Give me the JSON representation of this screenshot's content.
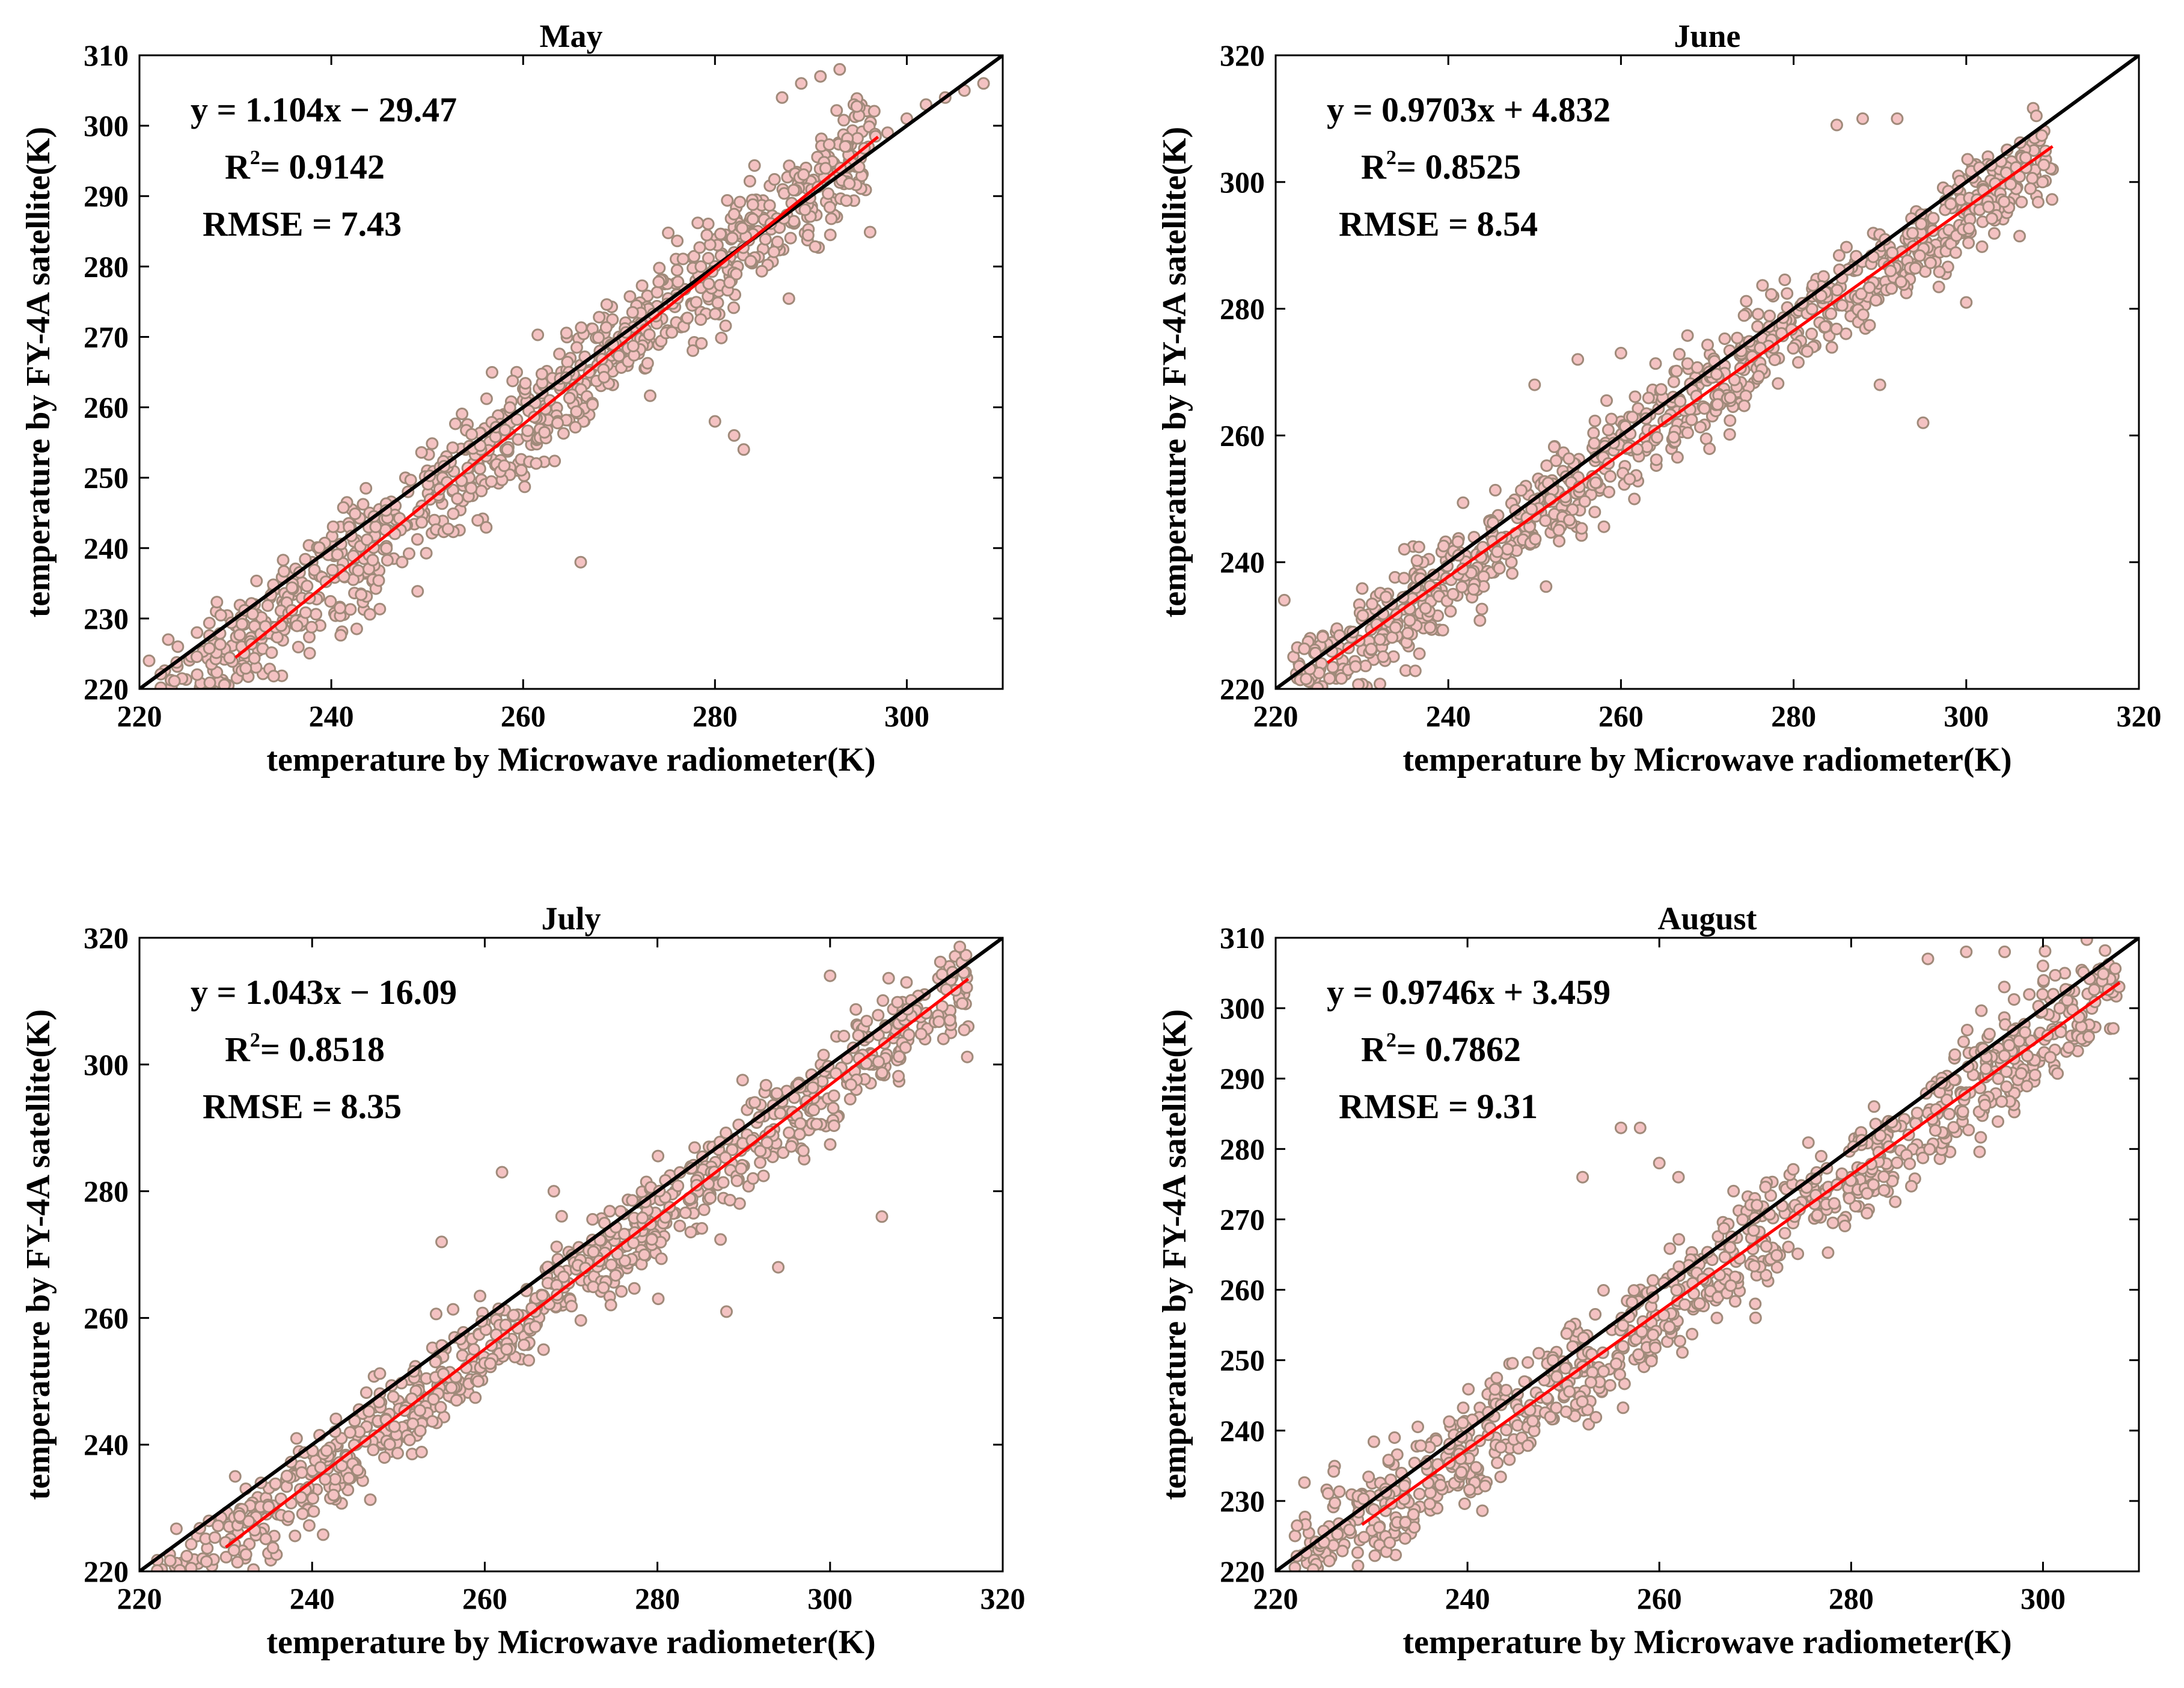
{
  "chart_data": [
    {
      "type": "scatter",
      "title": "May",
      "xlabel": "temperature by Microwave radiometer(K)",
      "ylabel": "temperature by FY-4A satellite(K)",
      "xlim": [
        220,
        310
      ],
      "ylim": [
        220,
        310
      ],
      "xticks": [
        220,
        240,
        260,
        280,
        300
      ],
      "yticks": [
        220,
        230,
        240,
        250,
        260,
        270,
        280,
        290,
        300,
        310
      ],
      "fit": {
        "slope": 1.104,
        "intercept": -29.47,
        "x_range": [
          230,
          297
        ]
      },
      "reference_line": "y = x",
      "equation": "y = 1.104x − 29.47",
      "r2_prefix": "R",
      "r2_exp": "2",
      "r2_value": "= 0.9142",
      "rmse": "RMSE = 7.43",
      "series": [
        {
          "name": "observations",
          "x": [
            221,
            223,
            224,
            226,
            228,
            230,
            232,
            234,
            236,
            238,
            240,
            242,
            244,
            246,
            248,
            250,
            252,
            254,
            256,
            258,
            260,
            262,
            264,
            266,
            268,
            270,
            272,
            274,
            276,
            278,
            280,
            282,
            284,
            286,
            288,
            290,
            292,
            294,
            296,
            298,
            300,
            302,
            304,
            306,
            308,
            283,
            280,
            282,
            266,
            287,
            289,
            291,
            293
          ],
          "y": [
            224,
            227,
            226,
            228,
            231,
            229,
            232,
            234,
            236,
            238,
            241,
            243,
            245,
            246,
            248,
            251,
            253,
            254,
            257,
            259,
            261,
            262,
            265,
            266,
            268,
            270,
            272,
            274,
            276,
            278,
            280,
            282,
            285,
            287,
            289,
            291,
            293,
            295,
            297,
            299,
            301,
            303,
            304,
            305,
            306,
            254,
            258,
            256,
            238,
            304,
            306,
            307,
            308
          ]
        }
      ]
    },
    {
      "type": "scatter",
      "title": "June",
      "xlabel": "temperature by Microwave radiometer(K)",
      "ylabel": "temperature by FY-4A satellite(K)",
      "xlim": [
        220,
        320
      ],
      "ylim": [
        220,
        320
      ],
      "xticks": [
        220,
        240,
        260,
        280,
        300,
        320
      ],
      "yticks": [
        220,
        240,
        260,
        280,
        300,
        320
      ],
      "fit": {
        "slope": 0.9703,
        "intercept": 4.832,
        "x_range": [
          226,
          310
        ]
      },
      "reference_line": "y = x",
      "equation": "y = 0.9703x + 4.832",
      "r2_prefix": "R",
      "r2_exp": "2",
      "r2_value": "= 0.8525",
      "rmse": "RMSE = 8.54",
      "series": [
        {
          "name": "observations",
          "x": [
            221,
            224,
            227,
            230,
            233,
            236,
            239,
            242,
            245,
            248,
            251,
            254,
            257,
            260,
            263,
            266,
            269,
            272,
            275,
            278,
            281,
            284,
            287,
            290,
            293,
            296,
            299,
            302,
            305,
            308,
            310,
            250,
            255,
            260,
            290,
            295,
            300,
            285,
            288,
            292
          ],
          "y": [
            234,
            228,
            229,
            231,
            235,
            236,
            238,
            241,
            244,
            247,
            250,
            253,
            256,
            260,
            263,
            265,
            268,
            271,
            274,
            277,
            280,
            283,
            286,
            289,
            291,
            294,
            296,
            298,
            300,
            301,
            302,
            268,
            272,
            273,
            268,
            262,
            281,
            309,
            310,
            310
          ]
        }
      ]
    },
    {
      "type": "scatter",
      "title": "July",
      "xlabel": "temperature by Microwave radiometer(K)",
      "ylabel": "temperature by FY-4A satellite(K)",
      "xlim": [
        220,
        320
      ],
      "ylim": [
        220,
        320
      ],
      "xticks": [
        220,
        240,
        260,
        280,
        300,
        320
      ],
      "yticks": [
        220,
        240,
        260,
        280,
        300,
        320
      ],
      "fit": {
        "slope": 1.043,
        "intercept": -16.09,
        "x_range": [
          230,
          316
        ]
      },
      "reference_line": "y = x",
      "equation": "y = 1.043x − 16.09",
      "r2_prefix": "R",
      "r2_exp": "2",
      "r2_value": "= 0.8518",
      "rmse": "RMSE = 8.35",
      "series": [
        {
          "name": "observations",
          "x": [
            230,
            233,
            236,
            239,
            242,
            245,
            248,
            251,
            254,
            257,
            260,
            263,
            266,
            269,
            272,
            275,
            278,
            281,
            284,
            287,
            290,
            293,
            296,
            299,
            302,
            305,
            308,
            311,
            314,
            316,
            255,
            262,
            268,
            288,
            294,
            300,
            306
          ],
          "y": [
            229,
            228,
            229,
            231,
            234,
            237,
            240,
            243,
            246,
            250,
            253,
            256,
            259,
            262,
            265,
            268,
            272,
            275,
            278,
            281,
            284,
            288,
            291,
            294,
            297,
            300,
            302,
            304,
            305,
            306,
            272,
            283,
            280,
            261,
            268,
            314,
            276
          ]
        }
      ]
    },
    {
      "type": "scatter",
      "title": "August",
      "xlabel": "temperature by Microwave radiometer(K)",
      "ylabel": "temperature by FY-4A satellite(K)",
      "xlim": [
        220,
        310
      ],
      "ylim": [
        220,
        310
      ],
      "xticks": [
        220,
        240,
        260,
        280,
        300
      ],
      "yticks": [
        220,
        230,
        240,
        250,
        260,
        270,
        280,
        290,
        300,
        310
      ],
      "fit": {
        "slope": 0.9746,
        "intercept": 3.459,
        "x_range": [
          229,
          308
        ]
      },
      "reference_line": "y = x",
      "equation": "y = 0.9746x + 3.459",
      "r2_prefix": "R",
      "r2_exp": "2",
      "r2_value": "= 0.7862",
      "rmse": "RMSE = 9.31",
      "series": [
        {
          "name": "observations",
          "x": [
            229,
            232,
            235,
            238,
            241,
            244,
            247,
            250,
            253,
            256,
            259,
            262,
            265,
            268,
            271,
            274,
            277,
            280,
            283,
            286,
            289,
            292,
            295,
            298,
            301,
            304,
            307,
            252,
            256,
            258,
            260,
            262,
            288,
            292,
            296,
            300,
            266,
            270
          ],
          "y": [
            231,
            233,
            231,
            232,
            234,
            238,
            242,
            246,
            249,
            252,
            255,
            258,
            261,
            264,
            267,
            270,
            273,
            276,
            279,
            282,
            285,
            288,
            291,
            294,
            297,
            299,
            302,
            276,
            283,
            283,
            278,
            276,
            307,
            308,
            308,
            306,
            256,
            258
          ]
        }
      ]
    }
  ]
}
